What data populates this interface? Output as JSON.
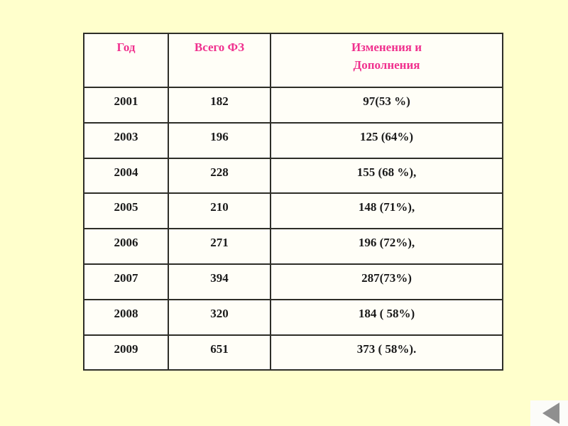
{
  "slide": {
    "background_color": "#FFFFCC",
    "table": {
      "header_color": "#F0318E",
      "body_color": "#1A1A1A",
      "cell_bg": "#FFFEF7",
      "border_color": "#2E2E28",
      "columns": [
        "Год",
        "Всего ФЗ",
        "Изменения и\nДополнения"
      ],
      "rows": [
        [
          "2001",
          "182",
          "97(53 %)"
        ],
        [
          "2003",
          "196",
          "125 (64%)"
        ],
        [
          "2004",
          "228",
          "155 (68 %),"
        ],
        [
          "2005",
          "210",
          "148 (71%),"
        ],
        [
          "2006",
          "271",
          "196 (72%),"
        ],
        [
          "2007",
          "394",
          "287(73%)"
        ],
        [
          "2008",
          "320",
          "184 ( 58%)"
        ],
        [
          "2009",
          "651",
          "373 ( 58%)."
        ]
      ]
    },
    "nav": {
      "back_button_icon": "left-triangle",
      "back_button_triangle_color": "#8F8F8F",
      "back_button_bg": "#FCFCF9"
    }
  },
  "chart_data": {
    "type": "table",
    "title": "",
    "columns": [
      "Год",
      "Всего ФЗ",
      "Изменения и Дополнения"
    ],
    "rows": [
      {
        "year": 2001,
        "total_fz": 182,
        "changes": "97(53 %)"
      },
      {
        "year": 2003,
        "total_fz": 196,
        "changes": "125 (64%)"
      },
      {
        "year": 2004,
        "total_fz": 228,
        "changes": "155 (68 %),"
      },
      {
        "year": 2005,
        "total_fz": 210,
        "changes": "148 (71%),"
      },
      {
        "year": 2006,
        "total_fz": 271,
        "changes": "196 (72%),"
      },
      {
        "year": 2007,
        "total_fz": 394,
        "changes": "287(73%)"
      },
      {
        "year": 2008,
        "total_fz": 320,
        "changes": "184 ( 58%)"
      },
      {
        "year": 2009,
        "total_fz": 651,
        "changes": "373 ( 58%)."
      }
    ]
  }
}
